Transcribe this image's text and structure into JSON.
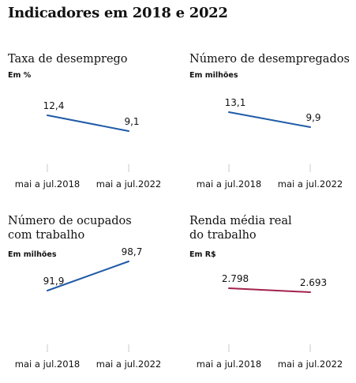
{
  "title": "Indicadores em 2018 e 2022",
  "colors": {
    "blue": "#1f5ba7",
    "red": "#a3224b",
    "axis": "#c8c8c8"
  },
  "chart_data": [
    {
      "type": "line",
      "title": "Taxa de desemprego",
      "unit": "Em %",
      "categories": [
        "mai a jul.2018",
        "mai a jul.2022"
      ],
      "values": [
        12.4,
        9.1
      ],
      "value_labels": [
        "12,4",
        "9,1"
      ],
      "color": "#1f5ba7"
    },
    {
      "type": "line",
      "title": "Número de desempregados",
      "unit": "Em milhões",
      "categories": [
        "mai a jul.2018",
        "mai a jul.2022"
      ],
      "values": [
        13.1,
        9.9
      ],
      "value_labels": [
        "13,1",
        "9,9"
      ],
      "color": "#1f5ba7"
    },
    {
      "type": "line",
      "title": "Número de ocupados com trabalho",
      "unit": "Em milhões",
      "categories": [
        "mai a jul.2018",
        "mai a jul.2022"
      ],
      "values": [
        91.9,
        98.7
      ],
      "value_labels": [
        "91,9",
        "98,7"
      ],
      "color": "#1f5ba7"
    },
    {
      "type": "line",
      "title": "Renda média real do trabalho",
      "unit": "Em R$",
      "categories": [
        "mai a jul.2018",
        "mai a jul.2022"
      ],
      "values": [
        2798,
        2693
      ],
      "value_labels": [
        "2.798",
        "2.693"
      ],
      "color": "#a3224b"
    }
  ]
}
